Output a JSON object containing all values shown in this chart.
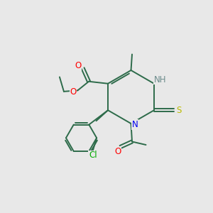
{
  "background_color": "#e8e8e8",
  "bond_color": "#2d6b4a",
  "N_color": "#0000ee",
  "O_color": "#ff0000",
  "S_color": "#bbbb00",
  "Cl_color": "#00aa00",
  "H_color": "#6b8b8b",
  "line_width": 1.4,
  "font_size": 8.5,
  "figsize": [
    3.0,
    3.0
  ],
  "dpi": 100,
  "xlim": [
    0,
    10
  ],
  "ylim": [
    0,
    10
  ]
}
